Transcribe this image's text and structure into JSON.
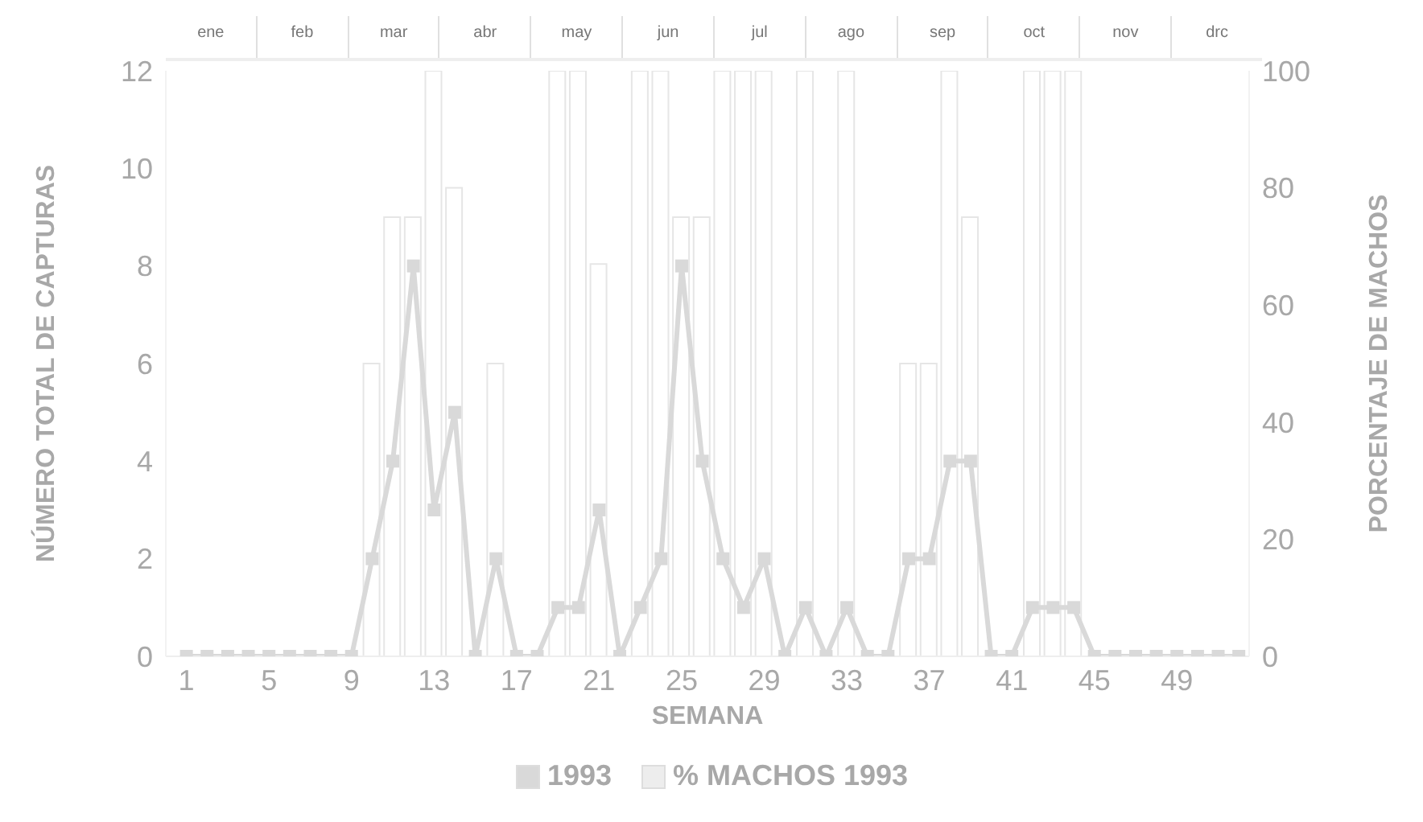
{
  "chart_data": {
    "type": "line",
    "xlabel": "SEMANA",
    "ylabel": "NÚMERO TOTAL DE CAPTURAS",
    "y2label": "PORCENTAJE DE MACHOS",
    "x": [
      1,
      2,
      3,
      4,
      5,
      6,
      7,
      8,
      9,
      10,
      11,
      12,
      13,
      14,
      15,
      16,
      17,
      18,
      19,
      20,
      21,
      22,
      23,
      24,
      25,
      26,
      27,
      28,
      29,
      30,
      31,
      32,
      33,
      34,
      35,
      36,
      37,
      38,
      39,
      40,
      41,
      42,
      43,
      44,
      45,
      46,
      47,
      48,
      49,
      50,
      51,
      52
    ],
    "series": [
      {
        "name": "1993",
        "color": "#d9d9d9",
        "values": [
          0,
          0,
          0,
          0,
          0,
          0,
          0,
          0,
          0,
          2,
          4,
          8,
          3,
          5,
          0,
          2,
          0,
          0,
          1,
          1,
          3,
          0,
          1,
          2,
          8,
          4,
          2,
          1,
          2,
          0,
          1,
          0,
          1,
          0,
          0,
          2,
          2,
          4,
          4,
          0,
          0,
          1,
          1,
          1,
          0,
          0,
          0,
          0,
          0,
          0,
          0,
          0
        ]
      },
      {
        "name": "% MACHOS 1993",
        "type": "bar",
        "axis": "y2",
        "color": "#e6e6e6",
        "values": [
          null,
          null,
          null,
          null,
          null,
          null,
          null,
          null,
          null,
          50,
          75,
          75,
          100,
          80,
          null,
          50,
          null,
          null,
          100,
          100,
          67,
          null,
          100,
          100,
          75,
          75,
          100,
          100,
          100,
          null,
          100,
          null,
          100,
          null,
          null,
          50,
          50,
          100,
          75,
          null,
          null,
          100,
          100,
          100,
          null,
          null,
          null,
          null,
          null,
          null,
          null,
          null
        ]
      }
    ],
    "xlim": [
      0,
      52.5
    ],
    "xticks": [
      1,
      5,
      9,
      13,
      17,
      21,
      25,
      29,
      33,
      37,
      41,
      45,
      49
    ],
    "ylim": [
      0,
      12
    ],
    "yticks": [
      0,
      2,
      4,
      6,
      8,
      10,
      12
    ],
    "y2lim": [
      0,
      100
    ],
    "y2ticks": [
      0,
      20,
      40,
      60,
      80,
      100
    ],
    "annotations": [
      "ene",
      "feb",
      "mar",
      "abr",
      "may",
      "jun",
      "jul",
      "ago",
      "sep",
      "oct",
      "nov",
      "drc"
    ],
    "marker": "square",
    "legend": "bottom"
  }
}
